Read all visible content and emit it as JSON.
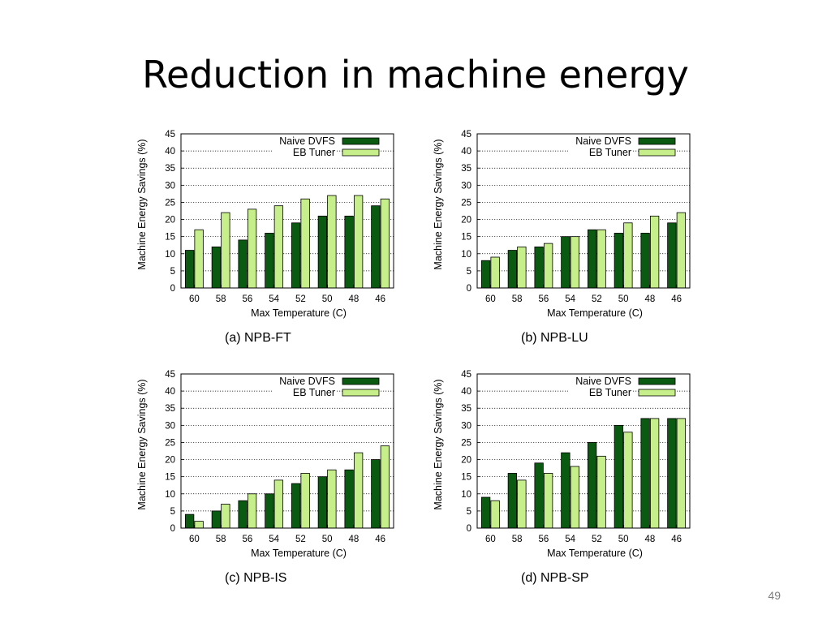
{
  "slide": {
    "title": "Reduction in machine energy",
    "page_number": "49"
  },
  "colors": {
    "naive_dvfs": "#0a5a12",
    "eb_tuner": "#c6ee8a"
  },
  "chart_data": [
    {
      "type": "bar",
      "caption": "(a) NPB-FT",
      "xlabel": "Max Temperature (C)",
      "ylabel": "Machine Energy Savings (%)",
      "ylim": [
        0,
        45
      ],
      "yticks": [
        0,
        5,
        10,
        15,
        20,
        25,
        30,
        35,
        40,
        45
      ],
      "grid": true,
      "legend_position": "top-right",
      "categories": [
        "60",
        "58",
        "56",
        "54",
        "52",
        "50",
        "48",
        "46"
      ],
      "series": [
        {
          "name": "Naive DVFS",
          "values": [
            11,
            12,
            14,
            16,
            19,
            21,
            21,
            24
          ]
        },
        {
          "name": "EB Tuner",
          "values": [
            17,
            22,
            23,
            24,
            26,
            27,
            27,
            26
          ]
        }
      ]
    },
    {
      "type": "bar",
      "caption": "(b) NPB-LU",
      "xlabel": "Max Temperature (C)",
      "ylabel": "Machine Energy Savings (%)",
      "ylim": [
        0,
        45
      ],
      "yticks": [
        0,
        5,
        10,
        15,
        20,
        25,
        30,
        35,
        40,
        45
      ],
      "grid": true,
      "legend_position": "top-right",
      "categories": [
        "60",
        "58",
        "56",
        "54",
        "52",
        "50",
        "48",
        "46"
      ],
      "series": [
        {
          "name": "Naive DVFS",
          "values": [
            8,
            11,
            12,
            15,
            17,
            16,
            16,
            19
          ]
        },
        {
          "name": "EB Tuner",
          "values": [
            9,
            12,
            13,
            15,
            17,
            19,
            21,
            22
          ]
        }
      ]
    },
    {
      "type": "bar",
      "caption": "(c) NPB-IS",
      "xlabel": "Max Temperature (C)",
      "ylabel": "Machine Energy Savings (%)",
      "ylim": [
        0,
        45
      ],
      "yticks": [
        0,
        5,
        10,
        15,
        20,
        25,
        30,
        35,
        40,
        45
      ],
      "grid": true,
      "legend_position": "top-right",
      "categories": [
        "60",
        "58",
        "56",
        "54",
        "52",
        "50",
        "48",
        "46"
      ],
      "series": [
        {
          "name": "Naive DVFS",
          "values": [
            4,
            5,
            8,
            10,
            13,
            15,
            17,
            20
          ]
        },
        {
          "name": "EB Tuner",
          "values": [
            2,
            7,
            10,
            14,
            16,
            17,
            22,
            24
          ]
        }
      ]
    },
    {
      "type": "bar",
      "caption": "(d) NPB-SP",
      "xlabel": "Max Temperature (C)",
      "ylabel": "Machine Energy Savings (%)",
      "ylim": [
        0,
        45
      ],
      "yticks": [
        0,
        5,
        10,
        15,
        20,
        25,
        30,
        35,
        40,
        45
      ],
      "grid": true,
      "legend_position": "top-right",
      "categories": [
        "60",
        "58",
        "56",
        "54",
        "52",
        "50",
        "48",
        "46"
      ],
      "series": [
        {
          "name": "Naive DVFS",
          "values": [
            9,
            16,
            19,
            22,
            25,
            30,
            32,
            32
          ]
        },
        {
          "name": "EB Tuner",
          "values": [
            8,
            14,
            16,
            18,
            21,
            28,
            32,
            32
          ]
        }
      ]
    }
  ]
}
